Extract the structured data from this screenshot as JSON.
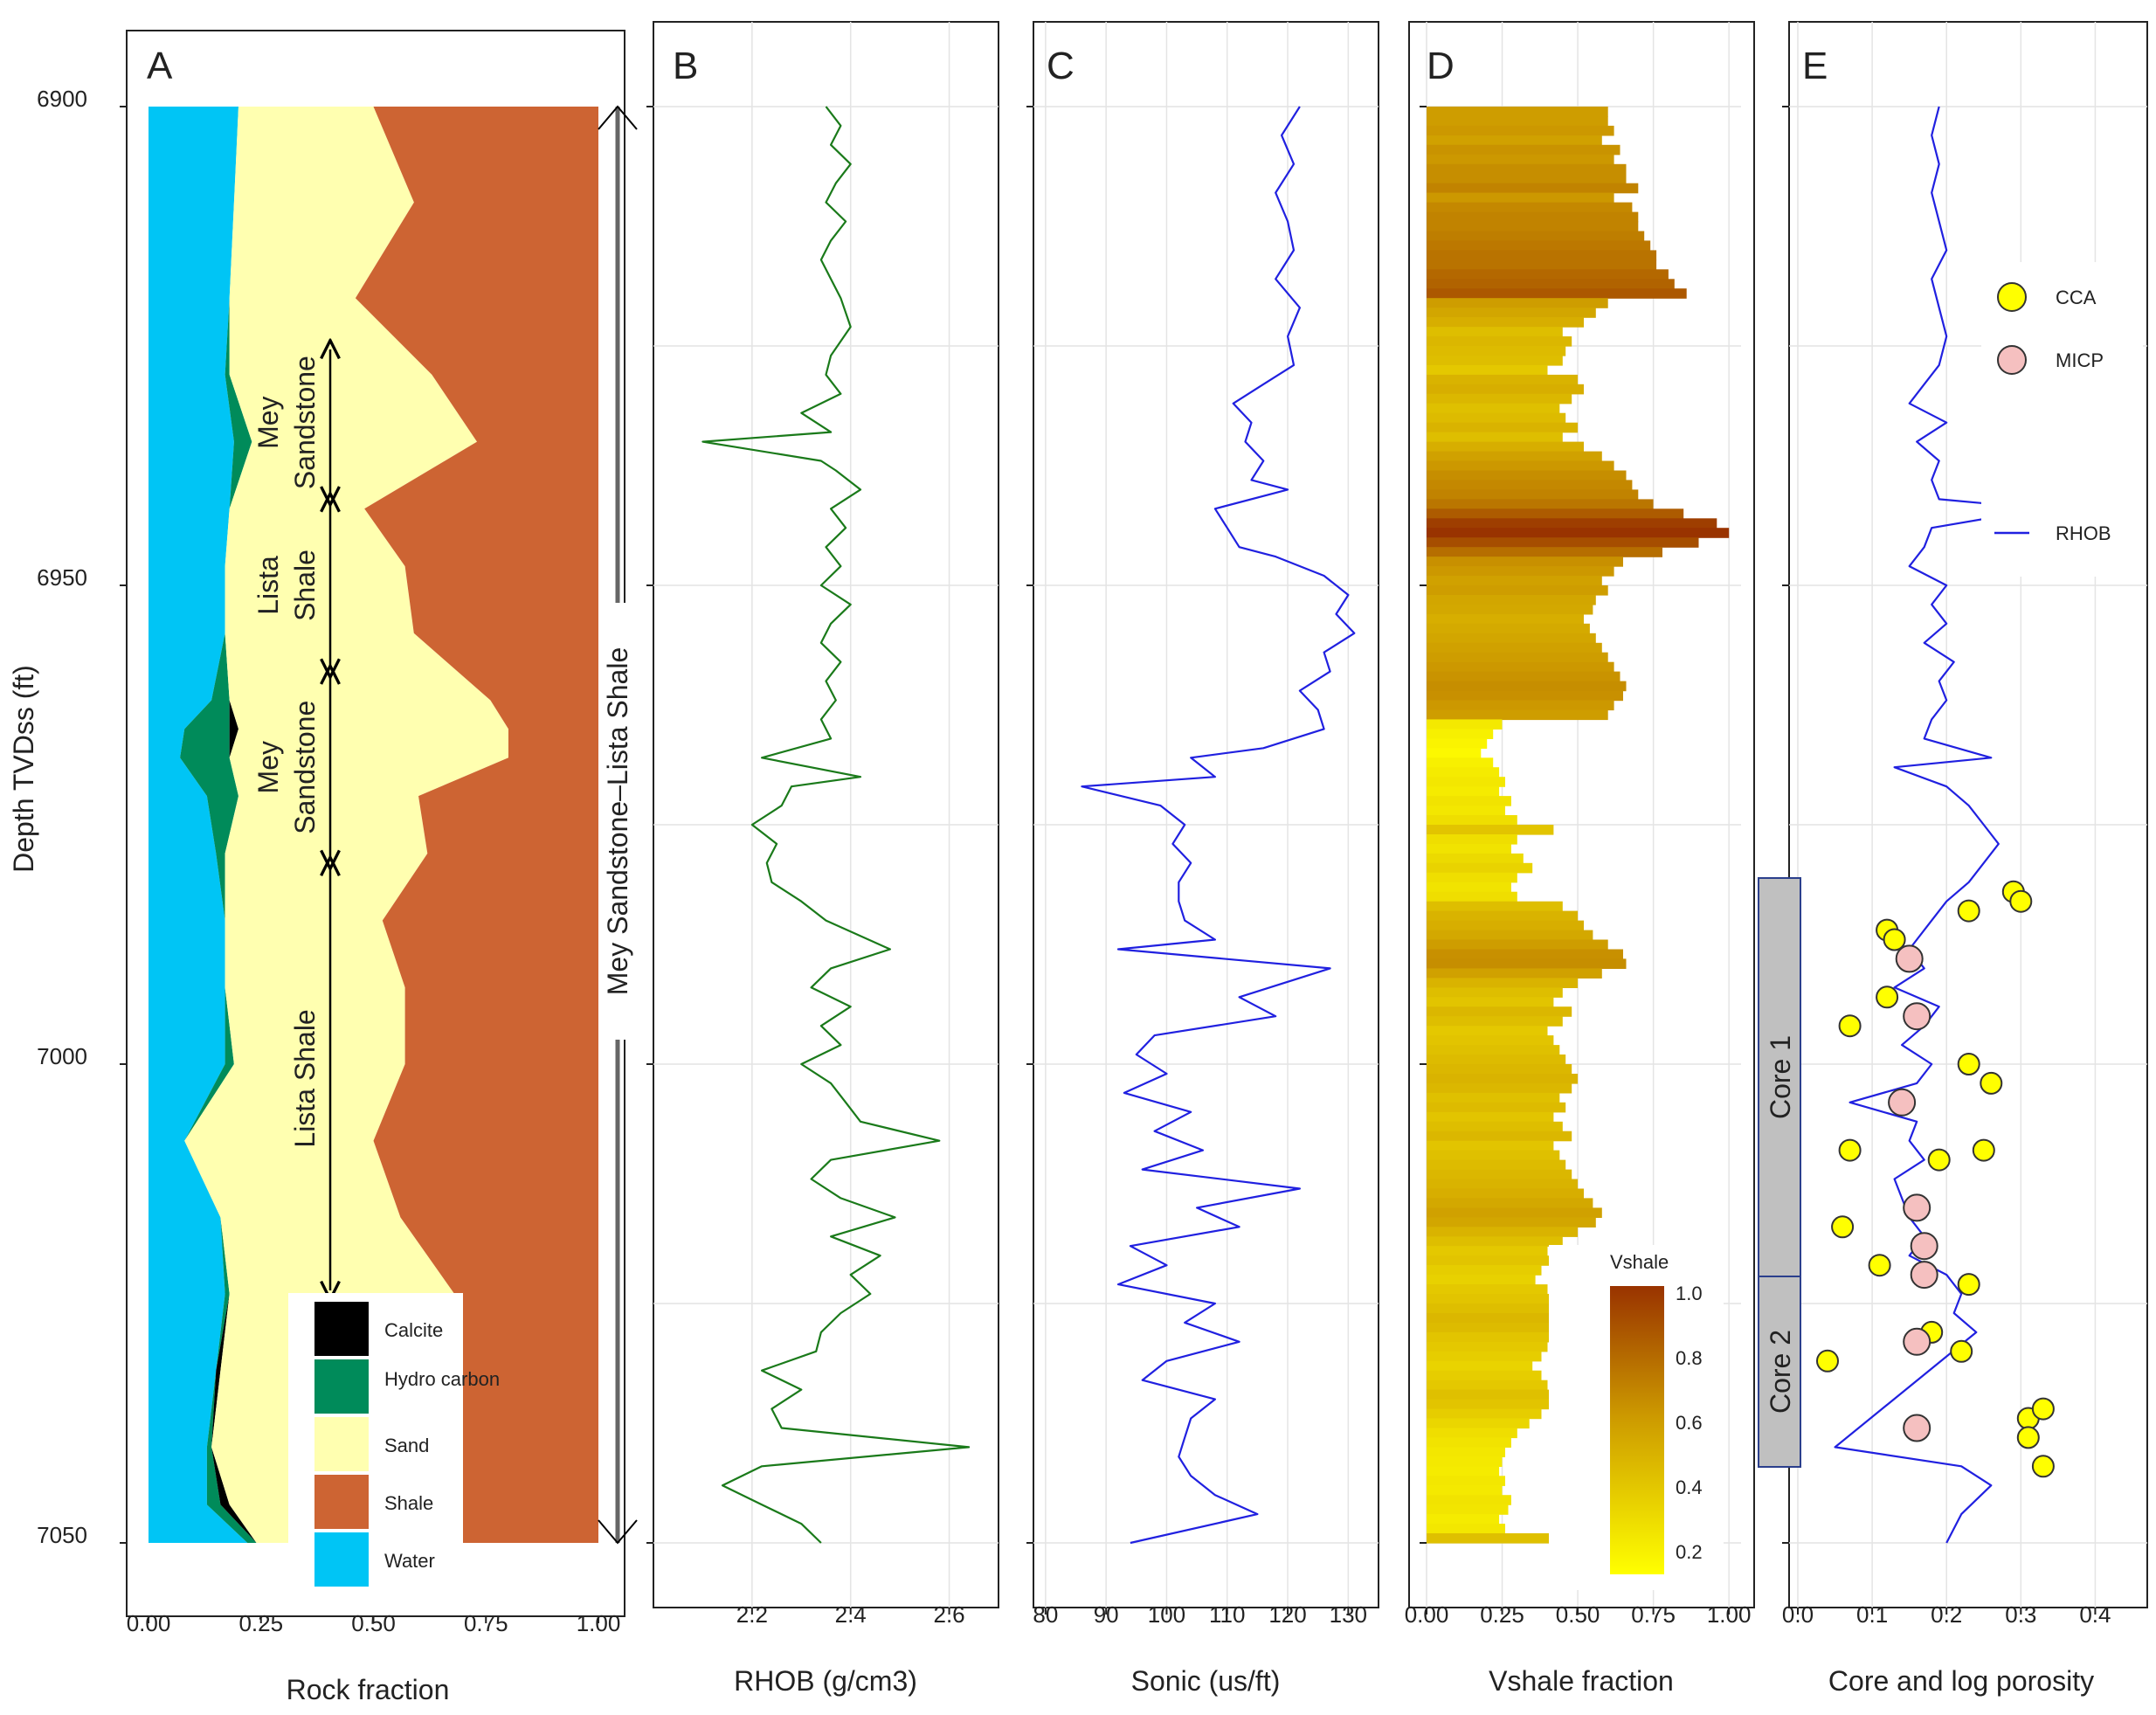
{
  "figure": {
    "ylabel": "Depth TVDss (ft)",
    "depth_ticks": [
      6900,
      6950,
      7000,
      7050
    ],
    "ylim": [
      6900,
      7050
    ]
  },
  "chart_data": [
    {
      "panel": "A",
      "type": "area",
      "xlabel": "Rock fraction",
      "xlim": [
        0,
        1
      ],
      "xticks": [
        "0.00",
        "0.25",
        "0.50",
        "0.75",
        "1.00"
      ],
      "ylim": [
        6900,
        7050
      ],
      "depth": [
        6900,
        6910,
        6920,
        6928,
        6935,
        6942,
        6948,
        6955,
        6962,
        6965,
        6968,
        6972,
        6978,
        6985,
        6992,
        7000,
        7008,
        7016,
        7024,
        7032,
        7040,
        7046,
        7050
      ],
      "series": [
        {
          "name": "Water",
          "values": [
            0.2,
            0.19,
            0.18,
            0.17,
            0.19,
            0.18,
            0.17,
            0.17,
            0.14,
            0.08,
            0.07,
            0.13,
            0.15,
            0.17,
            0.17,
            0.17,
            0.08,
            0.16,
            0.17,
            0.15,
            0.13,
            0.13,
            0.22
          ]
        },
        {
          "name": "Hydrocarbon",
          "values": [
            0.0,
            0.0,
            0.0,
            0.01,
            0.04,
            0.0,
            0.0,
            0.0,
            0.04,
            0.1,
            0.11,
            0.07,
            0.02,
            0.0,
            0.0,
            0.02,
            0.0,
            0.0,
            0.01,
            0.0,
            0.01,
            0.03,
            0.02
          ]
        },
        {
          "name": "Calcite",
          "values": [
            0.0,
            0.0,
            0.0,
            0.0,
            0.0,
            0.0,
            0.0,
            0.0,
            0.0,
            0.02,
            0.0,
            0.0,
            0.0,
            0.0,
            0.0,
            0.0,
            0.0,
            0.0,
            0.0,
            0.01,
            0.0,
            0.02,
            0.0
          ]
        },
        {
          "name": "Sand",
          "values": [
            0.3,
            0.4,
            0.28,
            0.45,
            0.5,
            0.3,
            0.4,
            0.42,
            0.58,
            0.6,
            0.62,
            0.4,
            0.45,
            0.35,
            0.4,
            0.38,
            0.42,
            0.4,
            0.5,
            0.48,
            0.4,
            0.42,
            0.28
          ]
        },
        {
          "name": "Shale",
          "values": [
            0.5,
            0.41,
            0.54,
            0.37,
            0.27,
            0.52,
            0.43,
            0.41,
            0.24,
            0.2,
            0.2,
            0.4,
            0.38,
            0.48,
            0.43,
            0.43,
            0.5,
            0.44,
            0.32,
            0.36,
            0.46,
            0.4,
            0.48
          ]
        }
      ],
      "legend": [
        "Calcite",
        "Hydro carbon",
        "Sand",
        "Shale",
        "Water"
      ],
      "colors": {
        "Calcite": "#000000",
        "Hydrocarbon": "#008B5A",
        "Sand": "#FFFFB0",
        "Shale": "#CD6433",
        "Water": "#00C5F5"
      },
      "zone_labels": [
        {
          "text": "Mey Sandstone",
          "top": 6925,
          "bottom": 6941
        },
        {
          "text": "Lista Shale",
          "top": 6941,
          "bottom": 6959
        },
        {
          "text": "Mey Sandstone",
          "top": 6959,
          "bottom": 6979
        },
        {
          "text": "Lista Shale",
          "top": 6979,
          "bottom": 7024
        }
      ],
      "interval_label": "Mey Sandstone–Lista Shale"
    },
    {
      "panel": "B",
      "type": "line",
      "xlabel": "RHOB (g/cm3)",
      "xlim": [
        2.0,
        2.7
      ],
      "xticks": [
        "2.2",
        "2.4",
        "2.6"
      ],
      "ylim": [
        6900,
        7050
      ],
      "series": [
        {
          "name": "RHOB",
          "color": "#1A7A1A",
          "x": [
            2.35,
            2.38,
            2.36,
            2.4,
            2.37,
            2.35,
            2.39,
            2.36,
            2.34,
            2.36,
            2.38,
            2.4,
            2.36,
            2.35,
            2.38,
            2.3,
            2.36,
            2.1,
            2.34,
            2.37,
            2.42,
            2.36,
            2.39,
            2.35,
            2.38,
            2.34,
            2.4,
            2.36,
            2.34,
            2.38,
            2.35,
            2.37,
            2.34,
            2.36,
            2.22,
            2.42,
            2.28,
            2.26,
            2.2,
            2.25,
            2.23,
            2.24,
            2.3,
            2.35,
            2.48,
            2.36,
            2.32,
            2.4,
            2.34,
            2.38,
            2.3,
            2.36,
            2.39,
            2.42,
            2.58,
            2.36,
            2.32,
            2.38,
            2.49,
            2.36,
            2.46,
            2.4,
            2.44,
            2.38,
            2.34,
            2.33,
            2.22,
            2.3,
            2.24,
            2.26,
            2.64,
            2.22,
            2.14,
            2.22,
            2.3,
            2.34
          ],
          "depth": [
            6900,
            6902,
            6904,
            6906,
            6908,
            6910,
            6912,
            6914,
            6916,
            6918,
            6920,
            6923,
            6926,
            6928,
            6930,
            6932,
            6934,
            6935,
            6937,
            6938,
            6940,
            6942,
            6944,
            6946,
            6948,
            6950,
            6952,
            6954,
            6956,
            6958,
            6960,
            6962,
            6964,
            6966,
            6968,
            6970,
            6971,
            6973,
            6975,
            6977,
            6979,
            6981,
            6983,
            6985,
            6988,
            6990,
            6992,
            6994,
            6996,
            6998,
            7000,
            7002,
            7004,
            7006,
            7008,
            7010,
            7012,
            7014,
            7016,
            7018,
            7020,
            7022,
            7024,
            7026,
            7028,
            7030,
            7032,
            7034,
            7036,
            7038,
            7040,
            7042,
            7044,
            7046,
            7048,
            7050
          ]
        }
      ]
    },
    {
      "panel": "C",
      "type": "line",
      "xlabel": "Sonic (us/ft)",
      "xlim": [
        78,
        135
      ],
      "xticks": [
        "80",
        "90",
        "100",
        "110",
        "120",
        "130"
      ],
      "ylim": [
        6900,
        7050
      ],
      "series": [
        {
          "name": "Sonic",
          "color": "#2020E0",
          "x": [
            122,
            119,
            121,
            118,
            120,
            121,
            118,
            122,
            120,
            121,
            116,
            111,
            114,
            113,
            116,
            114,
            120,
            108,
            110,
            112,
            118,
            126,
            130,
            128,
            131,
            126,
            127,
            122,
            125,
            126,
            116,
            104,
            108,
            86,
            99,
            103,
            101,
            104,
            102,
            102,
            103,
            108,
            92,
            127,
            112,
            118,
            98,
            95,
            100,
            93,
            104,
            98,
            106,
            96,
            122,
            105,
            112,
            94,
            100,
            92,
            108,
            103,
            112,
            100,
            96,
            108,
            104,
            103,
            102,
            104,
            108,
            115,
            94
          ],
          "depth": [
            6900,
            6903,
            6906,
            6909,
            6912,
            6915,
            6918,
            6921,
            6924,
            6927,
            6929,
            6931,
            6933,
            6935,
            6937,
            6939,
            6940,
            6942,
            6944,
            6946,
            6947,
            6949,
            6951,
            6953,
            6955,
            6957,
            6959,
            6961,
            6963,
            6965,
            6967,
            6968,
            6970,
            6971,
            6973,
            6975,
            6977,
            6979,
            6981,
            6983,
            6985,
            6987,
            6988,
            6990,
            6993,
            6995,
            6997,
            6999,
            7001,
            7003,
            7005,
            7007,
            7009,
            7011,
            7013,
            7015,
            7017,
            7019,
            7021,
            7023,
            7025,
            7027,
            7029,
            7031,
            7033,
            7035,
            7037,
            7039,
            7041,
            7043,
            7045,
            7047,
            7050
          ]
        }
      ]
    },
    {
      "panel": "D",
      "type": "bar",
      "orientation": "horizontal",
      "xlabel": "Vshale fraction",
      "xlim": [
        0,
        1.04
      ],
      "xticks": [
        "0.00",
        "0.25",
        "0.50",
        "0.75",
        "1.00"
      ],
      "ylim": [
        6900,
        7050
      ],
      "depth_top": 6900,
      "depth_step": 1,
      "values": [
        0.6,
        0.6,
        0.62,
        0.58,
        0.64,
        0.62,
        0.66,
        0.66,
        0.7,
        0.62,
        0.68,
        0.7,
        0.7,
        0.72,
        0.74,
        0.76,
        0.76,
        0.8,
        0.82,
        0.86,
        0.6,
        0.56,
        0.52,
        0.45,
        0.48,
        0.46,
        0.45,
        0.4,
        0.5,
        0.52,
        0.48,
        0.44,
        0.46,
        0.5,
        0.45,
        0.52,
        0.58,
        0.62,
        0.66,
        0.68,
        0.7,
        0.75,
        0.85,
        0.96,
        1.0,
        0.9,
        0.78,
        0.65,
        0.62,
        0.58,
        0.6,
        0.56,
        0.55,
        0.52,
        0.54,
        0.56,
        0.58,
        0.6,
        0.62,
        0.64,
        0.66,
        0.65,
        0.62,
        0.6,
        0.25,
        0.22,
        0.2,
        0.18,
        0.22,
        0.24,
        0.26,
        0.24,
        0.28,
        0.26,
        0.3,
        0.42,
        0.3,
        0.28,
        0.32,
        0.35,
        0.3,
        0.28,
        0.3,
        0.45,
        0.5,
        0.52,
        0.55,
        0.6,
        0.65,
        0.66,
        0.58,
        0.5,
        0.45,
        0.42,
        0.48,
        0.45,
        0.4,
        0.42,
        0.44,
        0.46,
        0.48,
        0.5,
        0.48,
        0.44,
        0.46,
        0.42,
        0.45,
        0.48,
        0.42,
        0.44,
        0.46,
        0.48,
        0.5,
        0.52,
        0.55,
        0.58,
        0.56,
        0.5,
        0.45,
        0.4,
        0.42,
        0.38,
        0.36,
        0.4,
        0.42,
        0.45,
        0.48,
        0.46,
        0.42,
        0.4,
        0.38,
        0.35,
        0.38,
        0.4,
        0.44,
        0.42,
        0.38,
        0.34,
        0.3,
        0.28,
        0.26,
        0.25,
        0.24,
        0.26,
        0.25,
        0.28,
        0.27,
        0.24,
        0.26,
        0.44
      ],
      "colorbar": {
        "title": "Vshale",
        "min": 0.15,
        "max": 1.0,
        "ticks": [
          "1.0",
          "0.8",
          "0.6",
          "0.4",
          "0.2"
        ],
        "low_color": "#FFFF00",
        "mid_color": "#CC9900",
        "high_color": "#993300"
      }
    },
    {
      "panel": "E",
      "type": "scatter",
      "xlabel": "Core and log porosity",
      "xlim": [
        0,
        0.47
      ],
      "xticks": [
        "0.0",
        "0.1",
        "0.2",
        "0.3",
        "0.4"
      ],
      "ylim": [
        6900,
        7050
      ],
      "series": [
        {
          "name": "RHOB",
          "mode": "line",
          "color": "#2020E0",
          "x": [
            0.19,
            0.18,
            0.19,
            0.18,
            0.19,
            0.2,
            0.18,
            0.19,
            0.2,
            0.19,
            0.17,
            0.15,
            0.2,
            0.16,
            0.19,
            0.18,
            0.19,
            0.33,
            0.18,
            0.17,
            0.15,
            0.2,
            0.18,
            0.2,
            0.17,
            0.21,
            0.19,
            0.2,
            0.18,
            0.17,
            0.26,
            0.13,
            0.2,
            0.23,
            0.25,
            0.27,
            0.25,
            0.23,
            0.2,
            0.18,
            0.15,
            0.17,
            0.13,
            0.19,
            0.17,
            0.14,
            0.18,
            0.16,
            0.07,
            0.16,
            0.15,
            0.17,
            0.13,
            0.14,
            0.15,
            0.17,
            0.15,
            0.2,
            0.22,
            0.21,
            0.24,
            0.05,
            0.22,
            0.26,
            0.22,
            0.2
          ],
          "depth": [
            6900,
            6903,
            6906,
            6909,
            6912,
            6915,
            6918,
            6921,
            6924,
            6927,
            6929,
            6931,
            6933,
            6935,
            6937,
            6939,
            6941,
            6942,
            6944,
            6946,
            6948,
            6950,
            6952,
            6954,
            6956,
            6958,
            6960,
            6962,
            6964,
            6966,
            6968,
            6969,
            6971,
            6973,
            6975,
            6977,
            6979,
            6981,
            6983,
            6985,
            6988,
            6990,
            6992,
            6994,
            6996,
            6998,
            7000,
            7002,
            7004,
            7006,
            7008,
            7010,
            7012,
            7014,
            7016,
            7018,
            7020,
            7022,
            7024,
            7026,
            7028,
            7040,
            7042,
            7044,
            7047,
            7050
          ]
        },
        {
          "name": "CCA",
          "mode": "points",
          "color": "#FFFF00",
          "x": [
            0.29,
            0.3,
            0.23,
            0.12,
            0.13,
            0.12,
            0.07,
            0.23,
            0.26,
            0.07,
            0.19,
            0.25,
            0.06,
            0.11,
            0.23,
            0.18,
            0.22,
            0.04,
            0.31,
            0.33,
            0.31,
            0.33
          ],
          "depth": [
            6982,
            6983,
            6984,
            6986,
            6987,
            6993,
            6996,
            7000,
            7002,
            7009,
            7010,
            7009,
            7017,
            7021,
            7023,
            7028,
            7030,
            7031,
            7037,
            7036,
            7039,
            7042
          ]
        },
        {
          "name": "MICP",
          "mode": "points",
          "color": "#F5C0C0",
          "x": [
            0.15,
            0.16,
            0.14,
            0.16,
            0.17,
            0.17,
            0.16,
            0.16
          ],
          "depth": [
            6989,
            6995,
            7004,
            7015,
            7019,
            7022,
            7029,
            7038
          ]
        }
      ],
      "legend": [
        "CCA",
        "MICP",
        "RHOB"
      ],
      "cores": [
        {
          "label": "Core 1",
          "top": 6982,
          "bottom": 7024
        },
        {
          "label": "Core 2",
          "top": 7024,
          "bottom": 7043
        }
      ]
    }
  ]
}
